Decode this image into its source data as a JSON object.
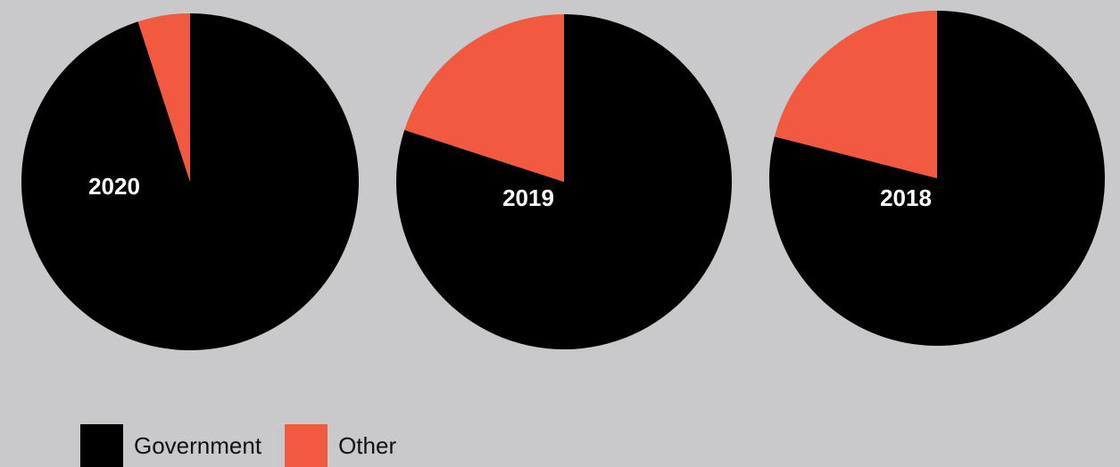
{
  "chart_data": [
    {
      "type": "pie",
      "label": "2020",
      "categories": [
        "Government",
        "Other"
      ],
      "values": [
        95,
        5
      ]
    },
    {
      "type": "pie",
      "label": "2019",
      "categories": [
        "Government",
        "Other"
      ],
      "values": [
        80,
        20
      ]
    },
    {
      "type": "pie",
      "label": "2018",
      "categories": [
        "Government",
        "Other"
      ],
      "values": [
        79,
        21
      ]
    }
  ],
  "legend": {
    "items": [
      {
        "label": "Government",
        "color": "#000000"
      },
      {
        "label": "Other",
        "color": "#f15a41"
      }
    ]
  }
}
